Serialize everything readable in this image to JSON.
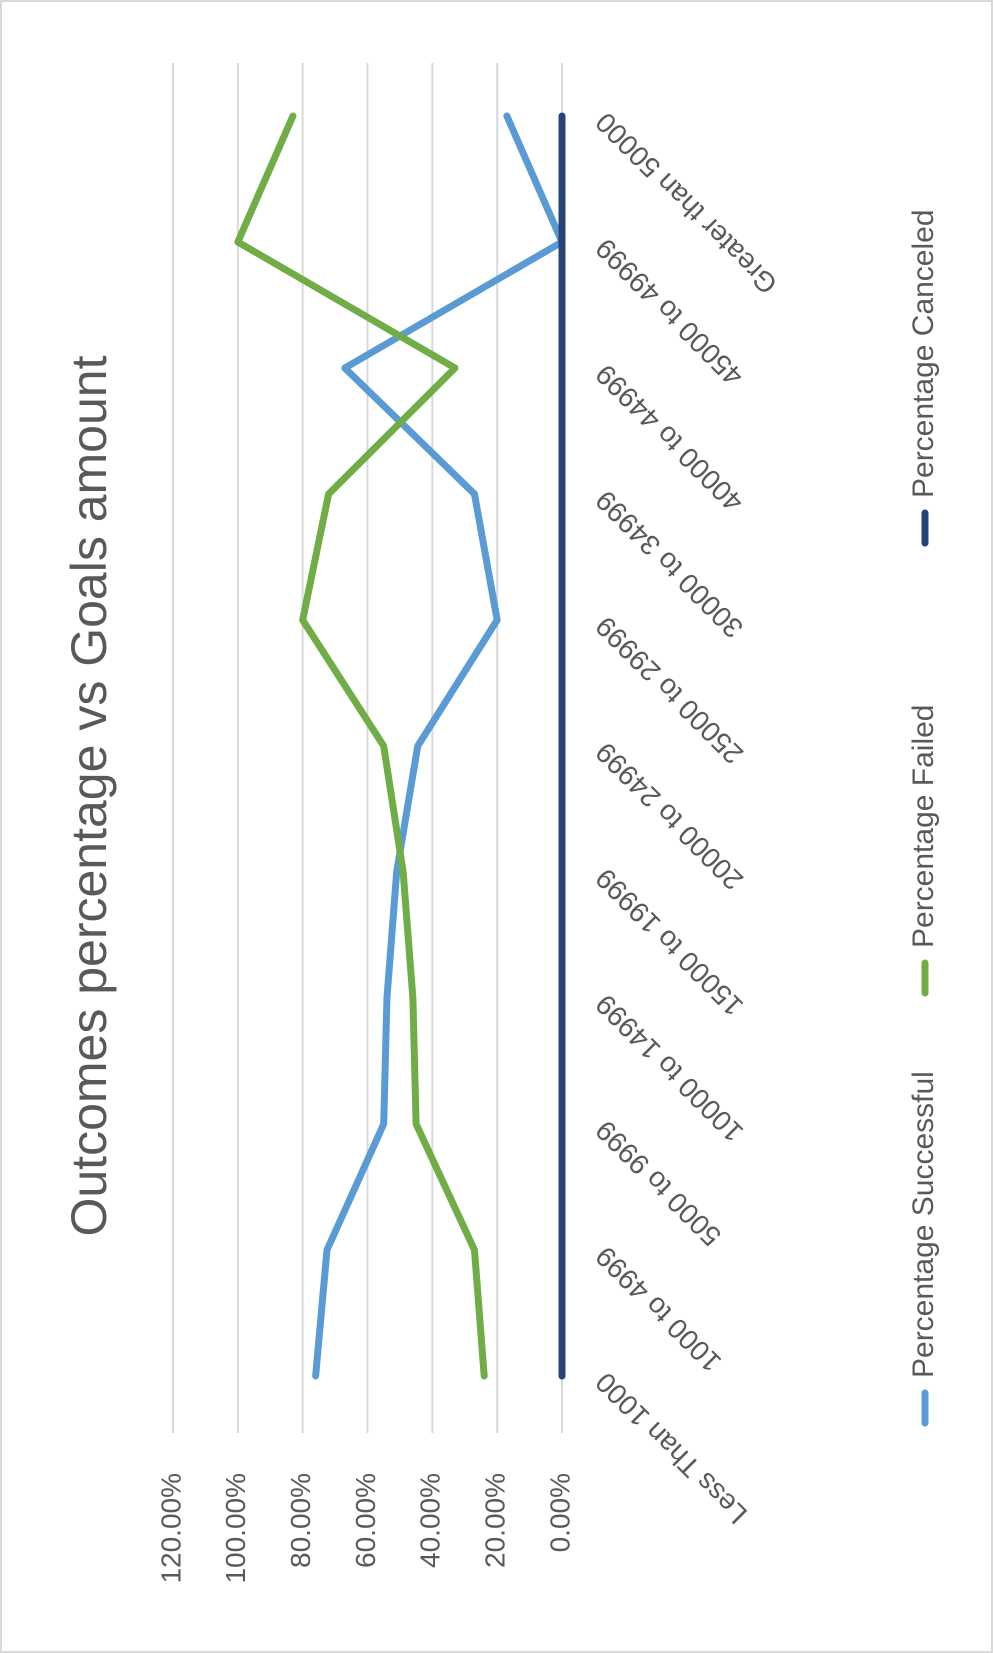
{
  "chart_data": {
    "type": "line",
    "title": "Outcomes percentage vs Goals amount",
    "categories": [
      "Less Than 1000",
      "1000 to 4999",
      "5000 to 9999",
      "10000 to 14999",
      "15000 to 19999",
      "20000 to 24999",
      "25000 to 29999",
      "30000 to 34999",
      "40000 to 44999",
      "45000 to 49999",
      "Greater than 50000"
    ],
    "series": [
      {
        "name": "Percentage Successful",
        "color": "#5b9bd5",
        "values": [
          76,
          72.5,
          55,
          54,
          51,
          44.5,
          20,
          27,
          67,
          0,
          17
        ]
      },
      {
        "name": "Percentage Failed",
        "color": "#70ad47",
        "values": [
          24,
          27,
          45,
          46,
          49,
          55,
          80,
          72,
          33,
          100,
          83
        ]
      },
      {
        "name": "Percentage Canceled",
        "color": "#264478",
        "values": [
          0,
          0,
          0,
          0,
          0,
          0,
          0,
          0,
          0,
          0,
          0
        ]
      }
    ],
    "ylim": [
      0,
      120
    ],
    "yticks": [
      {
        "value": 0,
        "label": "0.00%"
      },
      {
        "value": 20,
        "label": "20.00%"
      },
      {
        "value": 40,
        "label": "40.00%"
      },
      {
        "value": 60,
        "label": "60.00%"
      },
      {
        "value": 80,
        "label": "80.00%"
      },
      {
        "value": 100,
        "label": "100.00%"
      },
      {
        "value": 120,
        "label": "120.00%"
      }
    ],
    "grid": true,
    "legend": "bottom",
    "rotated": true
  }
}
